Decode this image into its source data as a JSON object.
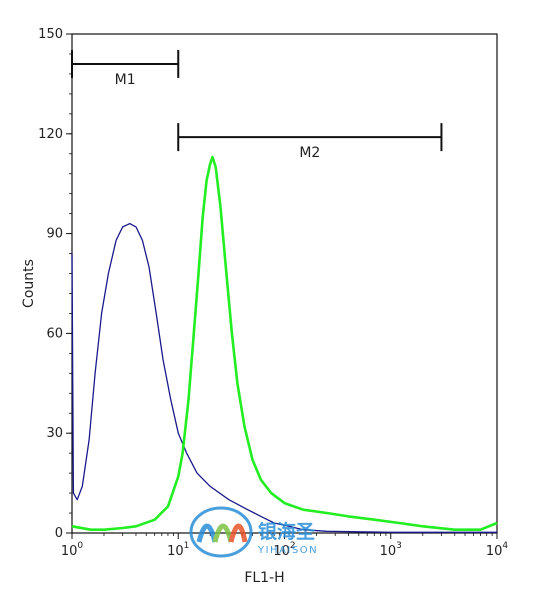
{
  "chart_data": {
    "type": "line",
    "xlabel": "FL1-H",
    "ylabel": "Counts",
    "xscale": "log",
    "xlim": [
      1,
      10000
    ],
    "ylim": [
      0,
      150
    ],
    "x_ticks": [
      {
        "value": 1,
        "base": "10",
        "exp": "0"
      },
      {
        "value": 10,
        "base": "10",
        "exp": "1"
      },
      {
        "value": 100,
        "base": "10",
        "exp": "2"
      },
      {
        "value": 1000,
        "base": "10",
        "exp": "3"
      },
      {
        "value": 10000,
        "base": "10",
        "exp": "4"
      }
    ],
    "y_ticks": [
      {
        "value": 0,
        "label": "0"
      },
      {
        "value": 30,
        "label": "30"
      },
      {
        "value": 60,
        "label": "60"
      },
      {
        "value": 90,
        "label": "90"
      },
      {
        "value": 120,
        "label": "120"
      },
      {
        "value": 150,
        "label": "150"
      }
    ],
    "grid": false,
    "markers": [
      {
        "label": "M1",
        "start": 1,
        "end": 10,
        "level": 141
      },
      {
        "label": "M2",
        "start": 10,
        "end": 3000,
        "level": 119
      }
    ],
    "series": [
      {
        "color": "#1a1a8c",
        "points": [
          [
            1,
            84
          ],
          [
            1.03,
            12
          ],
          [
            1.12,
            10
          ],
          [
            1.25,
            14
          ],
          [
            1.45,
            28
          ],
          [
            1.65,
            48
          ],
          [
            1.9,
            66
          ],
          [
            2.2,
            78
          ],
          [
            2.6,
            88
          ],
          [
            3.0,
            92
          ],
          [
            3.5,
            93
          ],
          [
            4.0,
            92
          ],
          [
            4.6,
            88
          ],
          [
            5.3,
            80
          ],
          [
            6.2,
            66
          ],
          [
            7.2,
            52
          ],
          [
            8.5,
            40
          ],
          [
            10,
            30
          ],
          [
            12,
            24
          ],
          [
            15,
            18
          ],
          [
            20,
            14
          ],
          [
            30,
            10
          ],
          [
            45,
            7
          ],
          [
            60,
            5
          ],
          [
            80,
            3
          ],
          [
            110,
            2
          ],
          [
            150,
            1
          ],
          [
            250,
            0.5
          ],
          [
            1000,
            0.2
          ],
          [
            10000,
            0.2
          ]
        ]
      },
      {
        "color": "#22ee22",
        "points": [
          [
            1,
            2
          ],
          [
            1.5,
            1
          ],
          [
            2,
            1
          ],
          [
            3,
            1.5
          ],
          [
            4,
            2
          ],
          [
            6,
            4
          ],
          [
            8,
            8
          ],
          [
            10,
            17
          ],
          [
            11,
            24
          ],
          [
            12.5,
            40
          ],
          [
            14,
            60
          ],
          [
            15.5,
            78
          ],
          [
            17,
            95
          ],
          [
            18.5,
            106
          ],
          [
            20,
            111
          ],
          [
            21,
            113
          ],
          [
            22.5,
            110
          ],
          [
            25,
            98
          ],
          [
            28,
            80
          ],
          [
            32,
            60
          ],
          [
            36,
            45
          ],
          [
            42,
            32
          ],
          [
            50,
            22
          ],
          [
            60,
            16
          ],
          [
            75,
            12
          ],
          [
            100,
            9
          ],
          [
            150,
            7
          ],
          [
            250,
            6
          ],
          [
            400,
            5
          ],
          [
            700,
            4
          ],
          [
            1200,
            3
          ],
          [
            2000,
            2
          ],
          [
            4000,
            1
          ],
          [
            7000,
            1
          ],
          [
            10000,
            3
          ]
        ]
      }
    ]
  },
  "watermark": {
    "text_cn": "银海圣",
    "text_en": "YIHAISON",
    "colors": [
      "#2a8fd8",
      "#7cc242",
      "#e8532a"
    ]
  }
}
